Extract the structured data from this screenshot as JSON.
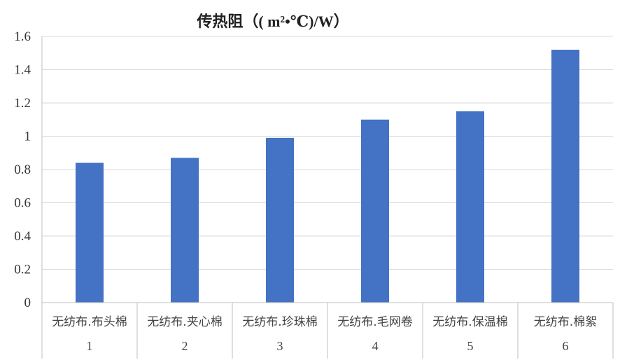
{
  "chart_data": {
    "type": "bar",
    "title": "传热阻（( m²•℃)/W）",
    "categories": [
      {
        "name": "无纺布.布头棉",
        "index": "1"
      },
      {
        "name": "无纺布.夹心棉",
        "index": "2"
      },
      {
        "name": "无纺布.珍珠棉",
        "index": "3"
      },
      {
        "name": "无纺布.毛网卷",
        "index": "4"
      },
      {
        "name": "无纺布.保温棉",
        "index": "5"
      },
      {
        "name": "无纺布.棉絮",
        "index": "6"
      }
    ],
    "values": [
      0.84,
      0.87,
      0.99,
      1.1,
      1.15,
      1.52
    ],
    "ylim": [
      0,
      1.6
    ],
    "yticks": [
      "0",
      "0.2",
      "0.4",
      "0.6",
      "0.8",
      "1",
      "1.2",
      "1.4",
      "1.6"
    ],
    "grid": true,
    "bar_color": "#4472C4",
    "grid_color": "#d9d9d9",
    "axis_color": "#bfbfbf"
  }
}
